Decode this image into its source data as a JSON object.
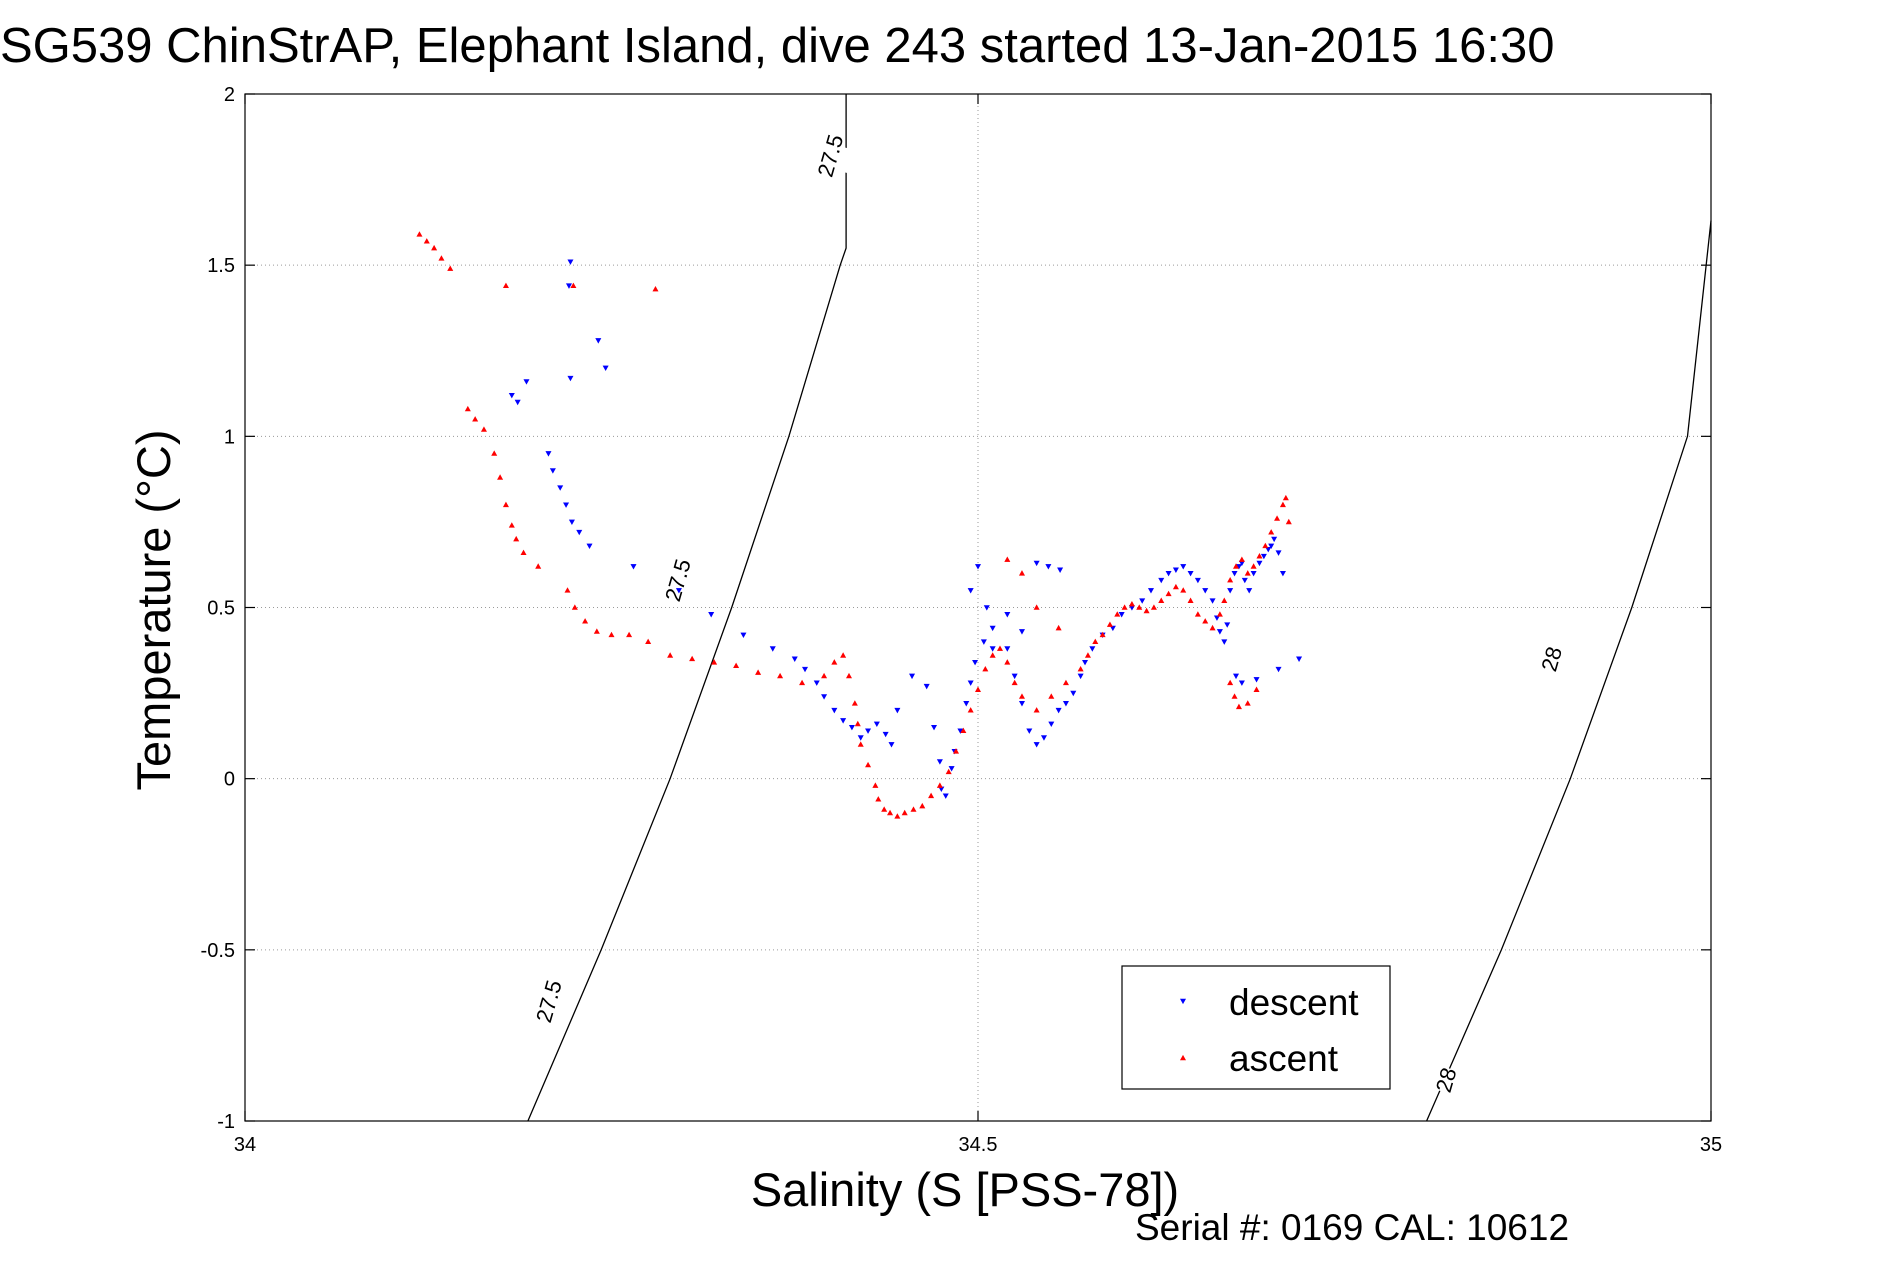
{
  "chart_data": {
    "type": "scatter",
    "title": "SG539 ChinStrAP, Elephant Island, dive 243 started 13-Jan-2015 16:30",
    "xlabel": "Salinity (S [PSS-78])",
    "ylabel": "Temperature (°C)",
    "footer": "Serial #: 0169 CAL: 10612",
    "xlim": [
      34,
      35
    ],
    "ylim": [
      -1,
      2
    ],
    "xticks": [
      34,
      34.5,
      35
    ],
    "xtick_labels": [
      "34",
      "34.5",
      "35"
    ],
    "yticks": [
      -1,
      -0.5,
      0,
      0.5,
      1,
      1.5,
      2
    ],
    "ytick_labels": [
      "-1",
      "-0.5",
      "0",
      "0.5",
      "1",
      "1.5",
      "2"
    ],
    "grid": true,
    "legend_position": "bottom-right",
    "isopycnals": [
      {
        "label": "27.5",
        "color": "#000000",
        "points": [
          [
            34.193,
            -1.0
          ],
          [
            34.243,
            -0.5
          ],
          [
            34.29,
            0.0
          ],
          [
            34.332,
            0.5
          ],
          [
            34.371,
            1.0
          ],
          [
            34.406,
            1.5
          ],
          [
            34.41,
            1.55
          ],
          [
            34.41,
            2.0
          ]
        ],
        "label_points": [
          [
            34.207,
            -0.65
          ],
          [
            34.295,
            0.58
          ],
          [
            34.399,
            1.82
          ]
        ]
      },
      {
        "label": "28",
        "color": "#000000",
        "points": [
          [
            34.806,
            -1.0
          ],
          [
            34.857,
            -0.5
          ],
          [
            34.904,
            0.0
          ],
          [
            34.946,
            0.5
          ],
          [
            34.984,
            1.0
          ],
          [
            35.0,
            1.63
          ]
        ],
        "label_points": [
          [
            34.819,
            -0.88
          ],
          [
            34.891,
            0.35
          ]
        ]
      }
    ],
    "series": [
      {
        "name": "descent",
        "color": "#0000ff",
        "marker": "triangle-down",
        "x": [
          34.222,
          34.221,
          34.241,
          34.246,
          34.222,
          34.192,
          34.182,
          34.186,
          34.207,
          34.21,
          34.215,
          34.219,
          34.223,
          34.228,
          34.235,
          34.265,
          34.296,
          34.318,
          34.34,
          34.36,
          34.375,
          34.382,
          34.39,
          34.395,
          34.402,
          34.408,
          34.414,
          34.42,
          34.425,
          34.431,
          34.437,
          34.441,
          34.445,
          34.455,
          34.465,
          34.47,
          34.474,
          34.475,
          34.478,
          34.482,
          34.484,
          34.488,
          34.492,
          34.495,
          34.498,
          34.504,
          34.506,
          34.51,
          34.52,
          34.525,
          34.53,
          34.535,
          34.54,
          34.545,
          34.55,
          34.555,
          34.56,
          34.565,
          34.57,
          34.573,
          34.578,
          34.585,
          34.592,
          34.598,
          34.605,
          34.612,
          34.618,
          34.625,
          34.63,
          34.635,
          34.64,
          34.645,
          34.65,
          34.655,
          34.66,
          34.663,
          34.665,
          34.668,
          34.67,
          34.672,
          34.675,
          34.678,
          34.68,
          34.682,
          34.685,
          34.688,
          34.692,
          34.695,
          34.698,
          34.7,
          34.702,
          34.705,
          34.708,
          34.676,
          34.68,
          34.69,
          34.705,
          34.719,
          34.54,
          34.548,
          34.556,
          34.495,
          34.5,
          34.52,
          34.53,
          34.51
        ],
        "y": [
          1.51,
          1.44,
          1.28,
          1.2,
          1.17,
          1.16,
          1.12,
          1.1,
          0.95,
          0.9,
          0.85,
          0.8,
          0.75,
          0.72,
          0.68,
          0.62,
          0.55,
          0.48,
          0.42,
          0.38,
          0.35,
          0.32,
          0.28,
          0.24,
          0.2,
          0.17,
          0.15,
          0.12,
          0.14,
          0.16,
          0.13,
          0.1,
          0.2,
          0.3,
          0.27,
          0.15,
          0.05,
          -0.03,
          -0.05,
          0.03,
          0.08,
          0.14,
          0.22,
          0.28,
          0.34,
          0.4,
          0.5,
          0.44,
          0.38,
          0.3,
          0.22,
          0.14,
          0.1,
          0.12,
          0.16,
          0.2,
          0.22,
          0.25,
          0.3,
          0.34,
          0.38,
          0.42,
          0.44,
          0.48,
          0.5,
          0.52,
          0.55,
          0.58,
          0.6,
          0.61,
          0.62,
          0.6,
          0.58,
          0.55,
          0.52,
          0.47,
          0.43,
          0.4,
          0.45,
          0.55,
          0.6,
          0.62,
          0.63,
          0.58,
          0.55,
          0.6,
          0.63,
          0.65,
          0.67,
          0.68,
          0.7,
          0.66,
          0.6,
          0.3,
          0.28,
          0.29,
          0.32,
          0.35,
          0.63,
          0.62,
          0.61,
          0.55,
          0.62,
          0.48,
          0.43,
          0.38
        ]
      },
      {
        "name": "ascent",
        "color": "#ff0000",
        "marker": "triangle-up",
        "x": [
          34.119,
          34.124,
          34.129,
          34.134,
          34.14,
          34.178,
          34.224,
          34.28,
          34.152,
          34.157,
          34.163,
          34.17,
          34.174,
          34.178,
          34.182,
          34.185,
          34.19,
          34.2,
          34.22,
          34.225,
          34.232,
          34.24,
          34.25,
          34.262,
          34.275,
          34.29,
          34.305,
          34.32,
          34.335,
          34.35,
          34.365,
          34.38,
          34.395,
          34.402,
          34.408,
          34.412,
          34.416,
          34.418,
          34.42,
          34.425,
          34.43,
          34.432,
          34.436,
          34.44,
          34.445,
          34.45,
          34.456,
          34.462,
          34.468,
          34.474,
          34.48,
          34.485,
          34.49,
          34.495,
          34.5,
          34.505,
          34.51,
          34.515,
          34.52,
          34.525,
          34.53,
          34.54,
          34.55,
          34.56,
          34.57,
          34.575,
          34.58,
          34.585,
          34.59,
          34.595,
          34.6,
          34.605,
          34.61,
          34.615,
          34.62,
          34.625,
          34.63,
          34.635,
          34.64,
          34.645,
          34.65,
          34.655,
          34.66,
          34.665,
          34.668,
          34.672,
          34.676,
          34.68,
          34.684,
          34.688,
          34.692,
          34.696,
          34.7,
          34.704,
          34.708,
          34.71,
          34.712,
          34.672,
          34.675,
          34.678,
          34.684,
          34.69,
          34.52,
          34.53,
          34.54,
          34.555
        ],
        "y": [
          1.59,
          1.57,
          1.55,
          1.52,
          1.49,
          1.44,
          1.44,
          1.43,
          1.08,
          1.05,
          1.02,
          0.95,
          0.88,
          0.8,
          0.74,
          0.7,
          0.66,
          0.62,
          0.55,
          0.5,
          0.46,
          0.43,
          0.42,
          0.42,
          0.4,
          0.36,
          0.35,
          0.34,
          0.33,
          0.31,
          0.3,
          0.28,
          0.3,
          0.34,
          0.36,
          0.3,
          0.22,
          0.16,
          0.1,
          0.04,
          -0.02,
          -0.06,
          -0.09,
          -0.1,
          -0.11,
          -0.1,
          -0.09,
          -0.08,
          -0.05,
          -0.02,
          0.02,
          0.08,
          0.14,
          0.2,
          0.26,
          0.32,
          0.36,
          0.38,
          0.34,
          0.28,
          0.24,
          0.2,
          0.24,
          0.28,
          0.32,
          0.36,
          0.4,
          0.42,
          0.45,
          0.48,
          0.5,
          0.51,
          0.5,
          0.49,
          0.5,
          0.52,
          0.54,
          0.56,
          0.55,
          0.52,
          0.48,
          0.46,
          0.44,
          0.48,
          0.52,
          0.58,
          0.62,
          0.64,
          0.6,
          0.62,
          0.65,
          0.68,
          0.72,
          0.76,
          0.8,
          0.82,
          0.75,
          0.28,
          0.24,
          0.21,
          0.22,
          0.26,
          0.64,
          0.6,
          0.5,
          0.44
        ]
      }
    ]
  }
}
